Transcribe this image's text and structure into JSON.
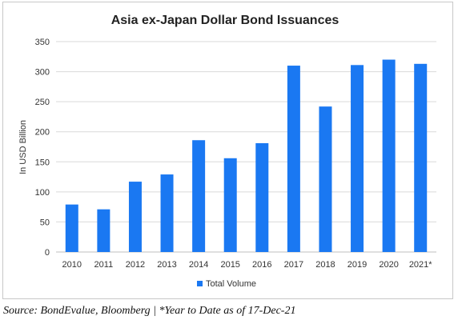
{
  "chart_data": {
    "type": "bar",
    "title": "Asia ex-Japan Dollar Bond Issuances",
    "ylabel": "In USD Billion",
    "xlabel": "",
    "categories": [
      "2010",
      "2011",
      "2012",
      "2013",
      "2014",
      "2015",
      "2016",
      "2017",
      "2018",
      "2019",
      "2020",
      "2021*"
    ],
    "series": [
      {
        "name": "Total Volume",
        "values": [
          79,
          71,
          117,
          129,
          186,
          156,
          181,
          310,
          242,
          311,
          320,
          313
        ]
      }
    ],
    "ylim": [
      0,
      350
    ],
    "yticks": [
      "0",
      "50",
      "100",
      "150",
      "200",
      "250",
      "300",
      "350"
    ],
    "grid": true,
    "legend": "bottom-center",
    "bar_color": "#1a78f2"
  },
  "footnote": "Source: BondEvalue, Bloomberg | *Year to Date as of 17-Dec-21"
}
